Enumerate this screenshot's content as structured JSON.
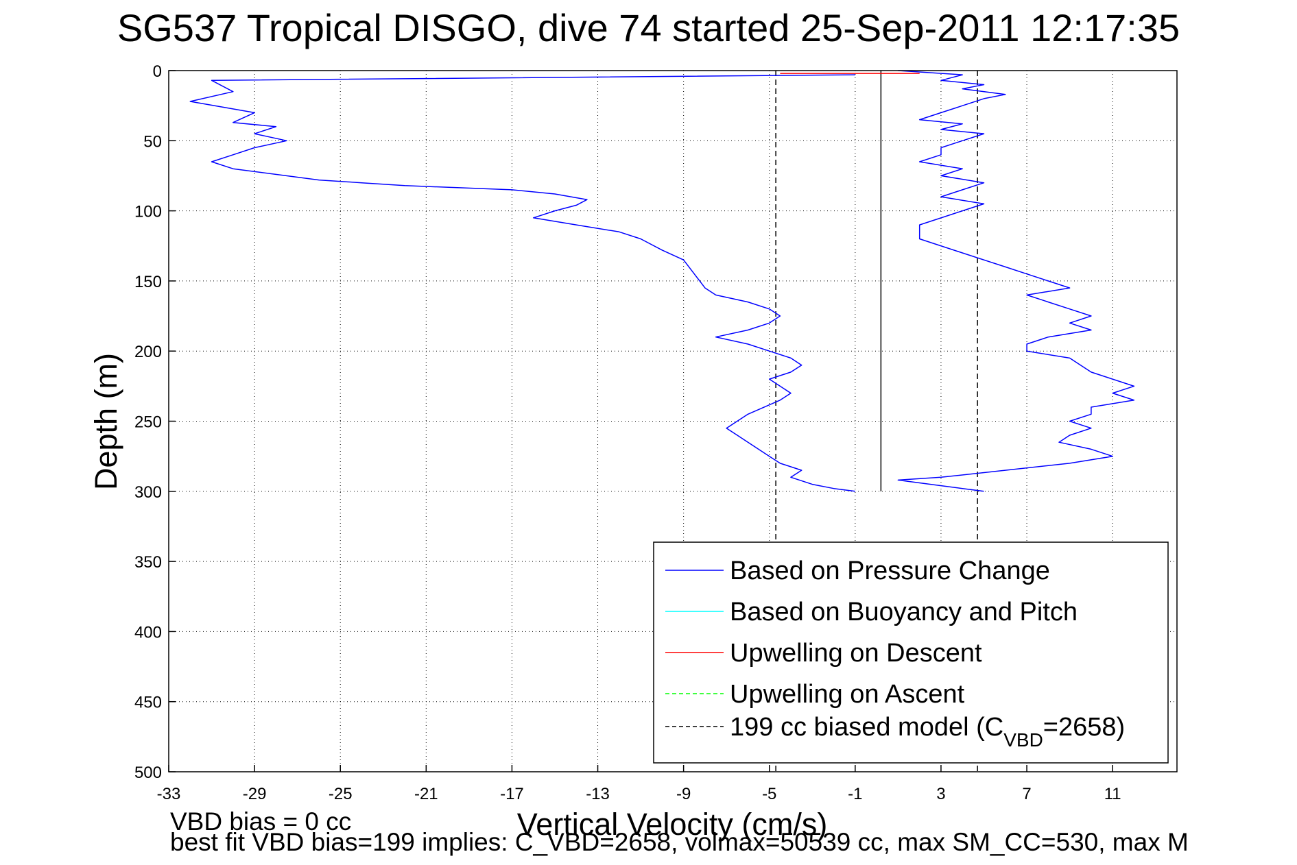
{
  "title": "SG537 Tropical DISGO, dive 74 started 25-Sep-2011 12:17:35",
  "footer": {
    "line1": "VBD bias = 0 cc",
    "line2": "best fit VBD bias=199 implies: C_VBD=2658, volmax=50539 cc, max SM_CC=530, max M"
  },
  "chart_data": {
    "type": "line",
    "xlabel": "Vertical Velocity (cm/s)",
    "ylabel": "Depth (m)",
    "xlim": [
      -33,
      14
    ],
    "ylim": [
      0,
      500
    ],
    "y_reversed": true,
    "xticks": [
      -33,
      -29,
      -25,
      -21,
      -17,
      -13,
      -9,
      -5,
      -1,
      3,
      7,
      11
    ],
    "yticks": [
      0,
      50,
      100,
      150,
      200,
      250,
      300,
      350,
      400,
      450,
      500
    ],
    "grid": true,
    "legend_position": "bottom-right",
    "legend": [
      {
        "label": "Based on Pressure Change",
        "color": "#0000ff",
        "dash": "solid"
      },
      {
        "label": "Based on Buoyancy and Pitch",
        "color": "#00ffff",
        "dash": "solid"
      },
      {
        "label": "Upwelling on Descent",
        "color": "#ff0000",
        "dash": "solid"
      },
      {
        "label": "Upwelling on Ascent",
        "color": "#00ff00",
        "dash": "dashed"
      },
      {
        "label": "199 cc biased model (C",
        "sub": "VBD",
        "suffix": "=2658)",
        "color": "#000000",
        "dash": "dashed"
      }
    ],
    "series": [
      {
        "label": "Based on Pressure Change",
        "color": "#0000ff",
        "segment": "descent",
        "x": [
          -1,
          -31,
          -30,
          -32,
          -29,
          -30,
          -28,
          -29,
          -27.5,
          -29,
          -30,
          -31,
          -30,
          -26,
          -24,
          -22,
          -17,
          -15,
          -13.5,
          -14,
          -15,
          -16,
          -14,
          -12,
          -11,
          -10,
          -9,
          -8.5,
          -8,
          -7.5,
          -6,
          -5,
          -4.5,
          -5,
          -6,
          -7.5,
          -6,
          -5,
          -4,
          -3.5,
          -4,
          -5,
          -4.5,
          -4,
          -4.5,
          -6,
          -7,
          -6,
          -5,
          -4.5,
          -3.5,
          -4,
          -3,
          -2,
          -1
        ],
        "y": [
          3,
          7,
          15,
          22,
          30,
          37,
          40,
          45,
          50,
          55,
          60,
          65,
          70,
          78,
          80,
          82,
          85,
          88,
          92,
          96,
          100,
          105,
          110,
          115,
          120,
          128,
          135,
          145,
          155,
          160,
          165,
          170,
          175,
          180,
          185,
          190,
          195,
          200,
          205,
          210,
          215,
          220,
          225,
          230,
          235,
          245,
          255,
          265,
          275,
          280,
          285,
          290,
          295,
          298,
          300
        ]
      },
      {
        "label": "Based on Pressure Change",
        "color": "#0000ff",
        "segment": "ascent",
        "x": [
          1,
          4,
          3,
          5,
          4,
          6,
          5,
          4,
          3,
          2,
          4,
          3,
          5,
          4,
          3,
          3,
          2,
          4,
          3,
          5,
          4,
          3,
          5,
          4,
          2,
          2,
          4,
          6,
          7,
          8,
          9,
          7,
          8,
          9,
          10,
          9,
          10,
          8,
          7,
          7,
          9,
          10,
          12,
          11,
          12,
          10,
          10,
          9,
          10,
          9,
          8.5,
          10,
          11,
          9,
          3,
          1,
          2,
          3,
          4,
          5
        ],
        "y": [
          0,
          3,
          7,
          10,
          13,
          17,
          20,
          25,
          30,
          35,
          38,
          42,
          45,
          50,
          55,
          60,
          65,
          70,
          75,
          80,
          85,
          90,
          95,
          100,
          110,
          120,
          130,
          140,
          145,
          150,
          155,
          160,
          165,
          170,
          175,
          180,
          185,
          190,
          195,
          200,
          205,
          215,
          225,
          230,
          235,
          240,
          245,
          250,
          255,
          260,
          265,
          270,
          275,
          280,
          290,
          292,
          294,
          296,
          298,
          300
        ]
      },
      {
        "label": "Upwelling on Descent",
        "color": "#ff0000",
        "x": [
          -4.5,
          2
        ],
        "y": [
          2,
          2
        ]
      }
    ],
    "reference_lines": [
      {
        "x": -4.7,
        "color": "#000000",
        "dash": "dashed",
        "ylim": [
          0,
          500
        ]
      },
      {
        "x": 4.7,
        "color": "#000000",
        "dash": "dashed",
        "ylim": [
          0,
          500
        ]
      },
      {
        "x": 0.2,
        "color": "#000000",
        "dash": "solid",
        "ylim": [
          0,
          300
        ]
      }
    ]
  }
}
